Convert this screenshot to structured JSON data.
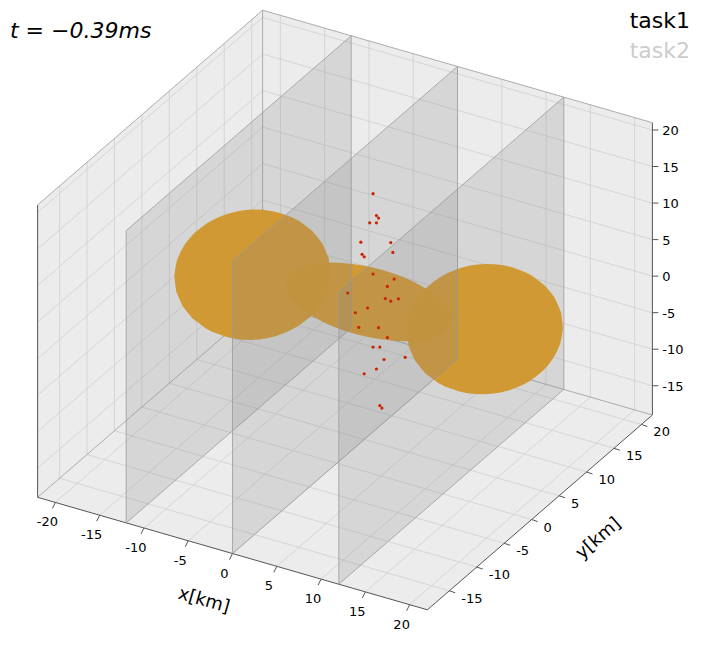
{
  "chart_data": {
    "type": "scatter3d",
    "title": "t = −0.39ms",
    "x_label": "x[km]",
    "y_label": "y[km]",
    "xlim": [
      -22,
      22
    ],
    "ylim": [
      -19,
      22
    ],
    "zlim": [
      -19,
      21
    ],
    "xticks": [
      -20,
      -15,
      -10,
      -5,
      0,
      5,
      10,
      15,
      20
    ],
    "yticks": [
      -15,
      -10,
      -5,
      0,
      5,
      10,
      15,
      20
    ],
    "zticks": [
      -15,
      -10,
      -5,
      0,
      5,
      10,
      15,
      20
    ],
    "grid": true,
    "legend": "upper right",
    "series": [
      {
        "name": "task1",
        "color": "#000000"
      },
      {
        "name": "task2",
        "color": "#cccccc"
      }
    ],
    "partitions_x": [
      -12,
      0,
      12
    ],
    "bodies": [
      {
        "center": [
          -12,
          4,
          0
        ],
        "radii": [
          7.5,
          7.5,
          7
        ],
        "color": "#e69a10"
      },
      {
        "center": [
          13,
          6,
          0
        ],
        "radii": [
          7.5,
          7.5,
          7
        ],
        "color": "#e69a10"
      },
      {
        "center": [
          0.5,
          5,
          0
        ],
        "radii": [
          9,
          4,
          3.5
        ],
        "color": "#e69a10"
      }
    ],
    "ejecta": {
      "color": "#cc2200",
      "x": [
        1,
        2,
        0,
        3,
        1,
        -1,
        2,
        4,
        1,
        0,
        2,
        3,
        1,
        2,
        -1,
        0,
        3,
        2,
        1,
        4,
        2,
        1,
        0,
        3,
        2,
        1,
        2,
        0,
        1,
        3
      ],
      "y": [
        5,
        4,
        6,
        5,
        3,
        6,
        7,
        4,
        5,
        2,
        6,
        5,
        4,
        8,
        5,
        4,
        3,
        6,
        5,
        6,
        4,
        7,
        5,
        3,
        5,
        6,
        4,
        5,
        6,
        4
      ],
      "z": [
        15,
        12,
        10,
        9,
        8,
        7,
        6,
        5,
        4,
        3,
        2,
        1,
        0,
        -1,
        -2,
        -3,
        -4,
        -5,
        -6,
        -7,
        -8,
        -9,
        -10,
        -12,
        -14,
        11,
        13,
        6,
        -4,
        2
      ]
    }
  }
}
